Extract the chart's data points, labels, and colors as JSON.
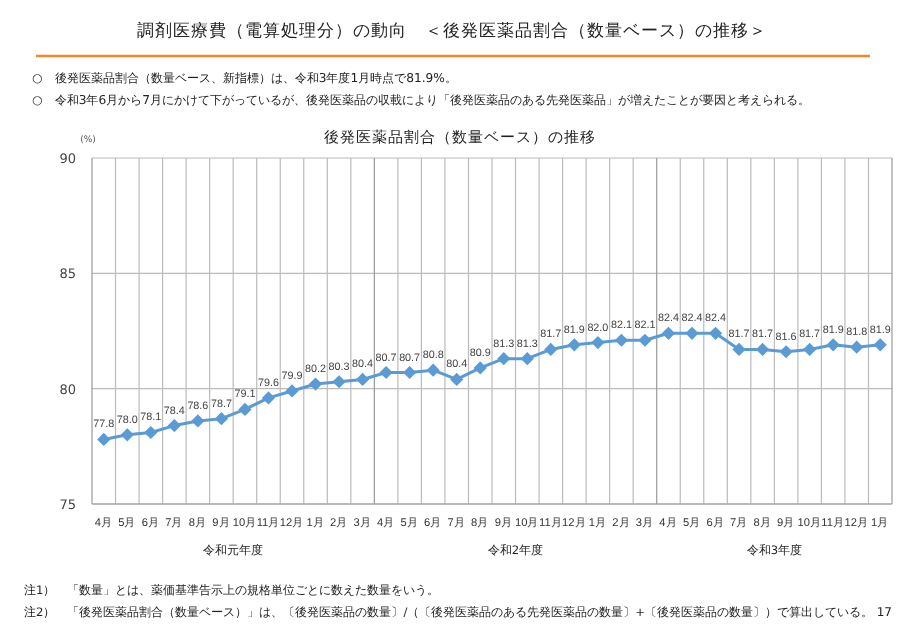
{
  "chart_data": {
    "type": "line",
    "title": "調剤医療費（電算処理分）の動向　＜後発医薬品割合（数量ベース）の推移＞",
    "subtitle": "後発医薬品割合（数量ベース）の推移",
    "ylabel": "(%)",
    "categories": [
      "4月",
      "5月",
      "6月",
      "7月",
      "8月",
      "9月",
      "10月",
      "11月",
      "12月",
      "1月",
      "2月",
      "3月",
      "4月",
      "5月",
      "6月",
      "7月",
      "8月",
      "9月",
      "10月",
      "11月",
      "12月",
      "1月",
      "2月",
      "3月",
      "4月",
      "5月",
      "6月",
      "7月",
      "8月",
      "9月",
      "10月",
      "11月",
      "12月",
      "1月"
    ],
    "series": [
      {
        "color": "#5b9bd5",
        "values": [
          77.8,
          78.0,
          78.1,
          78.4,
          78.6,
          78.7,
          79.1,
          79.6,
          79.9,
          80.2,
          80.3,
          80.4,
          80.7,
          80.7,
          80.8,
          80.4,
          80.9,
          81.3,
          81.3,
          81.7,
          81.9,
          82.0,
          82.1,
          82.1,
          82.4,
          82.4,
          82.4,
          81.7,
          81.7,
          81.6,
          81.7,
          81.9,
          81.8,
          81.9
        ]
      }
    ],
    "ylim": [
      75,
      90
    ],
    "yticks": [
      75,
      80,
      85,
      90
    ],
    "grid": true,
    "marker": "diamond",
    "value_labels": [
      "77.8",
      "78.0",
      "78.1",
      "78.4",
      "78.6",
      "78.7",
      "79.1",
      "79.6",
      "79.9",
      "80.2",
      "80.3",
      "80.4",
      "80.7",
      "80.7",
      "80.8",
      "80.4",
      "80.9",
      "81.3",
      "81.3",
      "81.7",
      "81.9",
      "82.0",
      "82.1",
      "82.1",
      "82.4",
      "82.4",
      "82.4",
      "81.7",
      "81.7",
      "81.6",
      "81.7",
      "81.9",
      "81.8",
      "81.9"
    ],
    "annotations": [
      "○　後発医薬品割合（数量ベース、新指標）は、令和3年度1月時点で81.9%。",
      "○　令和3年6月から7月にかけて下がっているが、後発医薬品の収載により「後発医薬品のある先発医薬品」が増えたことが要因と考えられる。",
      "令和元年度",
      "令和2年度",
      "令和3年度",
      "注1）　「数量」とは、薬価基準告示上の規格単位ごとに数えた数量をいう。",
      "注2）　「後発医薬品割合（数量ベース）」は、〔後発医薬品の数量〕/（〔後発医薬品のある先発医薬品の数量〕+〔後発医薬品の数量〕）で算出している。",
      "17"
    ]
  }
}
